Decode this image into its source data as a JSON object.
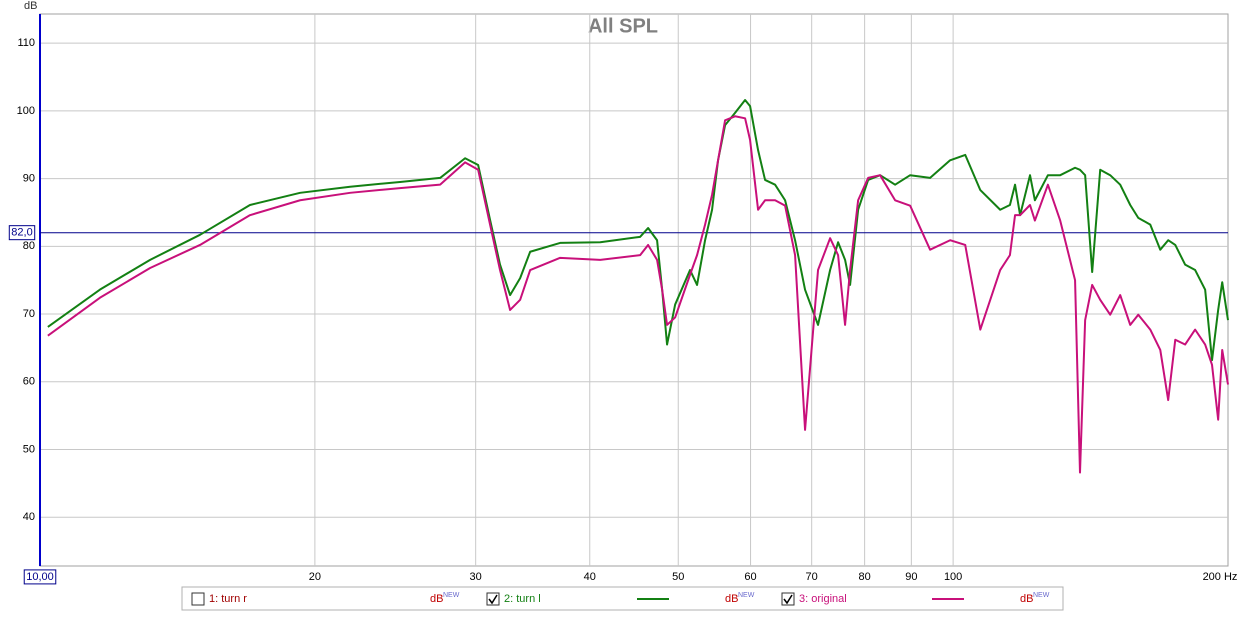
{
  "chart_data": {
    "type": "line",
    "title": "All SPL",
    "y_unit": "dB",
    "x": [
      10.2,
      11.63,
      13.2,
      14.97,
      16.98,
      19.27,
      21.86,
      24.79,
      27.43,
      29.21,
      30.19,
      31.11,
      31.9,
      32.72,
      33.56,
      34.42,
      37.12,
      41.07,
      45.42,
      46.34,
      47.4,
      48.01,
      48.61,
      49.61,
      51.51,
      52.43,
      53.5,
      54.45,
      55.28,
      56.27,
      57.7,
      59.18,
      59.93,
      61.15,
      62.24,
      63.83,
      65.46,
      67.13,
      68.84,
      71.13,
      73.33,
      74.82,
      76.15,
      77.12,
      78.7,
      80.71,
      83.18,
      86.39,
      89.73,
      94.36,
      99.24,
      103.1,
      107.1,
      112.6,
      115.4,
      116.9,
      118.4,
      121.4,
      122.9,
      127,
      131,
      136,
      137.7,
      139.5,
      142,
      144.9,
      148.6,
      152.4,
      156.3,
      159.5,
      164.4,
      168.6,
      172,
      175.1,
      179.5,
      184.1,
      188.8,
      192.1,
      195.1,
      197.1,
      200
    ],
    "series": [
      {
        "name": "2: turn l",
        "color": "#138013",
        "checked": true,
        "unit": "dB",
        "unit_sup": "NEW",
        "values": [
          68.1,
          73.6,
          78.0,
          81.7,
          86.1,
          87.9,
          88.8,
          89.5,
          90.1,
          93.0,
          92.0,
          83.9,
          77.3,
          72.8,
          75.3,
          79.2,
          80.5,
          80.6,
          81.4,
          82.7,
          80.9,
          73.6,
          65.5,
          71.4,
          76.5,
          74.3,
          80.9,
          85.4,
          92.7,
          97.9,
          99.7,
          101.6,
          100.7,
          94.2,
          89.8,
          89.1,
          86.8,
          80.9,
          73.6,
          68.4,
          76.5,
          80.6,
          78.0,
          74.3,
          85.4,
          89.8,
          90.5,
          89.1,
          90.5,
          90.1,
          92.7,
          93.5,
          88.3,
          85.4,
          86.1,
          89.1,
          84.6,
          90.5,
          86.8,
          90.5,
          90.5,
          91.6,
          91.3,
          90.5,
          76.2,
          91.3,
          90.5,
          89.1,
          86.1,
          84.2,
          83.2,
          79.5,
          80.9,
          80.2,
          77.3,
          76.5,
          73.6,
          63.2,
          70.6,
          74.7,
          69.1
        ]
      },
      {
        "name": "3: original",
        "color": "#c8107a",
        "checked": true,
        "unit": "dB",
        "unit_sup": "NEW",
        "values": [
          66.8,
          72.4,
          76.8,
          80.2,
          84.6,
          86.8,
          87.9,
          88.6,
          89.1,
          92.4,
          91.3,
          83.2,
          76.5,
          70.6,
          72.1,
          76.5,
          78.3,
          78.0,
          78.7,
          80.2,
          78.0,
          73.6,
          68.4,
          69.5,
          75.8,
          78.7,
          83.2,
          87.6,
          92.7,
          98.6,
          99.2,
          98.9,
          95.7,
          85.4,
          86.8,
          86.8,
          86.0,
          78.7,
          52.9,
          76.5,
          81.2,
          78.7,
          68.4,
          76.5,
          86.8,
          90.1,
          90.5,
          86.8,
          86.0,
          79.5,
          80.9,
          80.2,
          67.7,
          76.5,
          78.7,
          84.6,
          84.6,
          86.1,
          83.8,
          89.1,
          83.8,
          75.0,
          46.6,
          69.1,
          74.3,
          72.1,
          69.9,
          72.8,
          68.4,
          69.9,
          67.7,
          64.7,
          57.3,
          66.2,
          65.5,
          67.7,
          65.5,
          62.5,
          54.4,
          64.7,
          59.6
        ]
      }
    ],
    "hidden_series": [
      {
        "name": "1: turn r",
        "checked": false,
        "unit": "dB",
        "unit_sup": "NEW"
      }
    ],
    "xlim": [
      10,
      200
    ],
    "log_x": true,
    "xticks": [
      {
        "value": 10,
        "label": "10,00"
      },
      20,
      30,
      40,
      50,
      60,
      70,
      80,
      90,
      100,
      {
        "value": 200,
        "label": "200 Hz"
      }
    ],
    "ylim": [
      32.8,
      114.3
    ],
    "yticks": [
      40,
      50,
      60,
      70,
      80,
      90,
      100,
      110
    ],
    "ref_line": {
      "value": 82,
      "label": "82,0",
      "color": "#00008b"
    },
    "grid": true
  }
}
